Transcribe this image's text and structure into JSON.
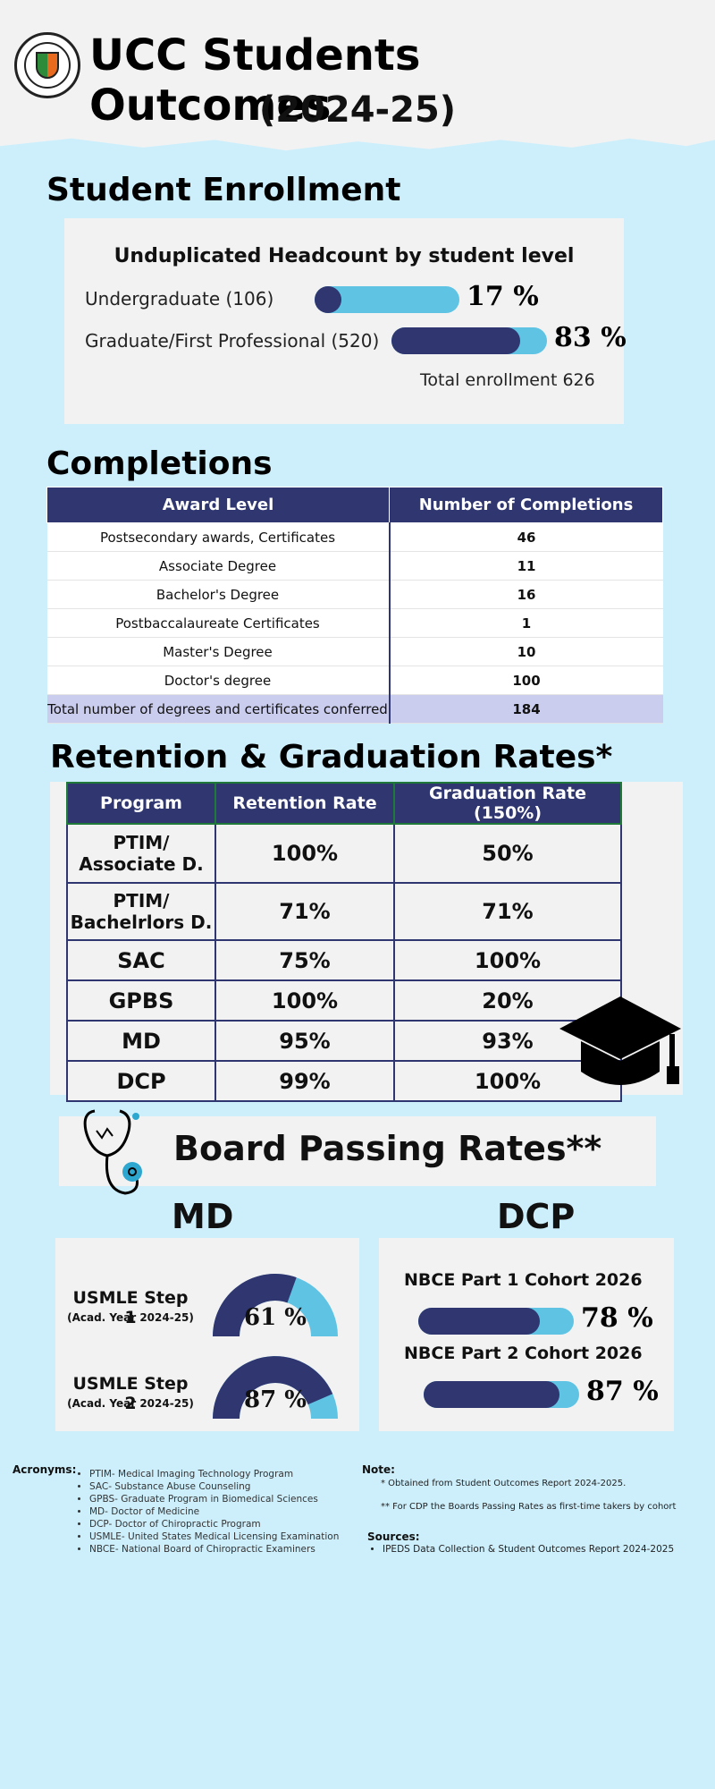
{
  "header": {
    "title_line1": "UCC Students Outcomes",
    "title_line2": "(2024-25)",
    "logo": "university-seal-icon"
  },
  "enrollment": {
    "heading": "Student Enrollment",
    "card_title": "Unduplicated Headcount by student level",
    "rows": [
      {
        "label": "Undergraduate (106)",
        "percent_text": "17 %",
        "percent": 17
      },
      {
        "label": "Graduate/First Professional (520)",
        "percent_text": "83 %",
        "percent": 83
      }
    ],
    "total": "Total enrollment 626",
    "colors": {
      "track": "#5fc3e4",
      "fill": "#2f3670"
    }
  },
  "completions": {
    "heading": "Completions",
    "columns": [
      "Award Level",
      "Number of Completions"
    ],
    "rows": [
      [
        "Postsecondary awards, Certificates",
        "46"
      ],
      [
        "Associate Degree",
        "11"
      ],
      [
        "Bachelor's Degree",
        "16"
      ],
      [
        "Postbaccalaureate Certificates",
        "1"
      ],
      [
        "Master's Degree",
        "10"
      ],
      [
        "Doctor's degree",
        "100"
      ]
    ],
    "total_row": [
      "Total number of degrees and certificates conferred",
      "184"
    ]
  },
  "retention": {
    "heading": "Retention & Graduation Rates*",
    "columns": [
      "Program",
      "Retention Rate",
      "Graduation Rate (150%)"
    ],
    "rows": [
      [
        "PTIM/ Associate D.",
        "100%",
        "50%"
      ],
      [
        "PTIM/ Bachelrlors D.",
        "71%",
        "71%"
      ],
      [
        "SAC",
        "75%",
        "100%"
      ],
      [
        "GPBS",
        "100%",
        "20%"
      ],
      [
        "MD",
        "95%",
        "93%"
      ],
      [
        "DCP",
        "99%",
        "100%"
      ]
    ],
    "decor_icon": "graduation-cap-icon"
  },
  "board": {
    "heading": "Board Passing Rates**",
    "decor_icon": "stethoscope-icon",
    "md": {
      "heading": "MD",
      "items": [
        {
          "label": "USMLE Step 1",
          "sub": "(Acad. Year 2024-25)",
          "percent_text": "61 %",
          "percent": 61
        },
        {
          "label": "USMLE Step 2",
          "sub": "(Acad. Year 2024-25)",
          "percent_text": "87 %",
          "percent": 87
        }
      ]
    },
    "dcp": {
      "heading": "DCP",
      "items": [
        {
          "label": "NBCE Part 1 Cohort 2026",
          "percent_text": "78 %",
          "percent": 78
        },
        {
          "label": "NBCE Part 2 Cohort 2026",
          "percent_text": "87 %",
          "percent": 87
        }
      ]
    },
    "colors": {
      "dark": "#2f3670",
      "light": "#5fc3e4"
    }
  },
  "footer": {
    "acronyms_label": "Acronyms:",
    "acronyms": [
      "PTIM- Medical Imaging Technology Program",
      "SAC- Substance Abuse Counseling",
      "GPBS- Graduate Program in Biomedical Sciences",
      "MD- Doctor of Medicine",
      "DCP- Doctor of Chiropractic Program",
      "USMLE- United States Medical Licensing Examination",
      "NBCE- National Board of Chiropractic Examiners"
    ],
    "note_label": "Note:",
    "notes": [
      "*  Obtained from Student Outcomes Report 2024-2025.",
      "** For CDP the Boards Passing Rates as first-time takers by cohort"
    ],
    "sources_label": "Sources:",
    "sources": [
      "IPEDS Data Collection  &  Student Outcomes Report 2024-2025"
    ]
  }
}
